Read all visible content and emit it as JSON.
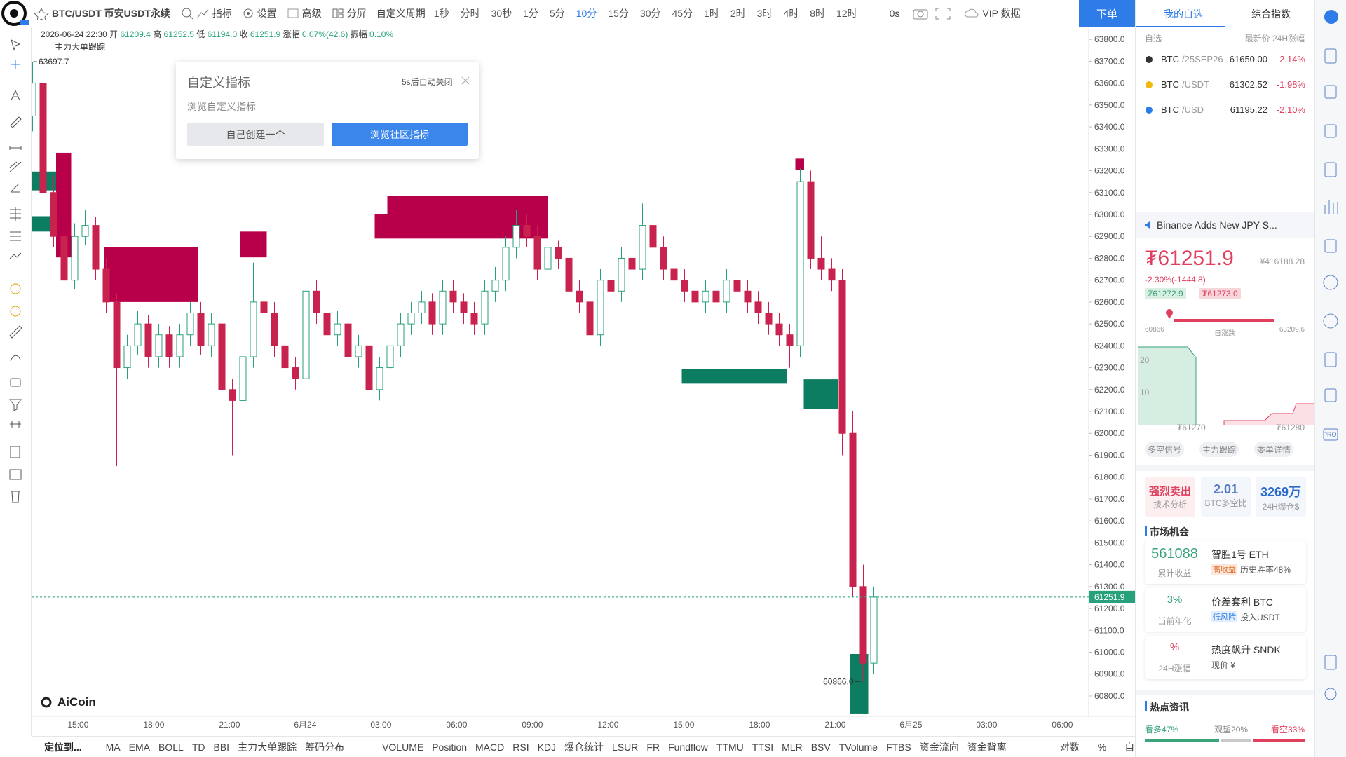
{
  "toolbar": {
    "symbol": "BTC/USDT 币安USDT永续",
    "indicator": "指标",
    "settings": "设置",
    "advanced": "高级",
    "split": "分屏",
    "custom_period": "自定义周期",
    "intervals": [
      "1秒",
      "分时",
      "30秒",
      "1分",
      "5分",
      "10分",
      "15分",
      "30分",
      "45分",
      "1时",
      "2时",
      "3时",
      "4时",
      "8时",
      "12时"
    ],
    "active_interval": "10分",
    "countdown": "0s",
    "vip": "VIP 数据",
    "order": "下单"
  },
  "legend": {
    "datetime": "2026-06-24 22:30",
    "open_label": "开",
    "open": "61209.4",
    "high_label": "高",
    "high": "61252.5",
    "low_label": "低",
    "low": "61194.0",
    "close_label": "收",
    "close": "61251.9",
    "change_label": "涨幅",
    "change": "0.07%(42.6)",
    "amplitude_label": "振幅",
    "amplitude": "0.10%",
    "indicator": "主力大单跟踪"
  },
  "popup": {
    "title": "自定义指标",
    "countdown": "5s后自动关闭",
    "subtitle": "浏览自定义指标",
    "create": "自己创建一个",
    "browse": "浏览社区指标"
  },
  "chart_data": {
    "type": "candlestick",
    "up_color": "#26a17b",
    "down_color": "#c8234e",
    "ylim": [
      60707,
      63855
    ],
    "yticks": [
      {
        "value": 63800,
        "label": "63800.0"
      },
      {
        "value": 63700,
        "label": "63700.0"
      },
      {
        "value": 63600,
        "label": "63600.0"
      },
      {
        "value": 63500,
        "label": "63500.0"
      },
      {
        "value": 63400,
        "label": "63400.0"
      },
      {
        "value": 63300,
        "label": "63300.0"
      },
      {
        "value": 63200,
        "label": "63200.0"
      },
      {
        "value": 63100,
        "label": "63100.0"
      },
      {
        "value": 63000,
        "label": "63000.0"
      },
      {
        "value": 62900,
        "label": "62900.0"
      },
      {
        "value": 62800,
        "label": "62800.0"
      },
      {
        "value": 62700,
        "label": "62700.0"
      },
      {
        "value": 62600,
        "label": "62600.0"
      },
      {
        "value": 62500,
        "label": "62500.0"
      },
      {
        "value": 62400,
        "label": "62400.0"
      },
      {
        "value": 62300,
        "label": "62300.0"
      },
      {
        "value": 62200,
        "label": "62200.0"
      },
      {
        "value": 62100,
        "label": "62100.0"
      },
      {
        "value": 62000,
        "label": "62000.0"
      },
      {
        "value": 61900,
        "label": "61900.0"
      },
      {
        "value": 61800,
        "label": "61800.0"
      },
      {
        "value": 61700,
        "label": "61700.0"
      },
      {
        "value": 61600,
        "label": "61600.0"
      },
      {
        "value": 61500,
        "label": "61500.0"
      },
      {
        "value": 61400,
        "label": "61400.0"
      },
      {
        "value": 61300,
        "label": "61300.0"
      },
      {
        "value": 61200,
        "label": "61200.0"
      },
      {
        "value": 61100,
        "label": "61100.0"
      },
      {
        "value": 61000,
        "label": "61000.0"
      },
      {
        "value": 60900,
        "label": "60900.0"
      },
      {
        "value": 60800,
        "label": "60800.0"
      }
    ],
    "grid": false,
    "xtick_labels": [
      "15:00",
      "18:00",
      "21:00",
      "6月24",
      "03:00",
      "06:00",
      "09:00",
      "12:00",
      "15:00",
      "18:00",
      "21:00",
      "6月25",
      "03:00",
      "06:00"
    ],
    "ohlc": [
      [
        63450,
        63697.7,
        63380,
        63600
      ],
      [
        63600,
        63650,
        63050,
        63100
      ],
      [
        63100,
        63180,
        62850,
        62900
      ],
      [
        62900,
        62950,
        62650,
        62700
      ],
      [
        62700,
        62960,
        62660,
        62900
      ],
      [
        62900,
        63020,
        62860,
        62950
      ],
      [
        62950,
        62990,
        62700,
        62750
      ],
      [
        62750,
        62800,
        62550,
        62600
      ],
      [
        62600,
        62640,
        61850,
        62300
      ],
      [
        62300,
        62450,
        62250,
        62400
      ],
      [
        62400,
        62560,
        62360,
        62500
      ],
      [
        62500,
        62540,
        62300,
        62350
      ],
      [
        62350,
        62500,
        62300,
        62450
      ],
      [
        62450,
        62490,
        62300,
        62350
      ],
      [
        62350,
        62500,
        62300,
        62450
      ],
      [
        62450,
        62600,
        62400,
        62550
      ],
      [
        62550,
        62600,
        62360,
        62400
      ],
      [
        62400,
        62550,
        62350,
        62500
      ],
      [
        62500,
        62540,
        62100,
        62200
      ],
      [
        62200,
        62250,
        61900,
        62150
      ],
      [
        62150,
        62400,
        62100,
        62350
      ],
      [
        62350,
        62780,
        62300,
        62600
      ],
      [
        62600,
        62650,
        62500,
        62550
      ],
      [
        62550,
        62600,
        62350,
        62400
      ],
      [
        62400,
        62450,
        62250,
        62300
      ],
      [
        62300,
        62350,
        62200,
        62250
      ],
      [
        62250,
        62800,
        62200,
        62650
      ],
      [
        62650,
        62700,
        62500,
        62550
      ],
      [
        62550,
        62600,
        62400,
        62450
      ],
      [
        62450,
        62560,
        62400,
        62500
      ],
      [
        62500,
        62540,
        62300,
        62350
      ],
      [
        62350,
        62450,
        62300,
        62400
      ],
      [
        62400,
        62450,
        62080,
        62200
      ],
      [
        62200,
        62350,
        62150,
        62300
      ],
      [
        62300,
        62450,
        62250,
        62400
      ],
      [
        62400,
        62550,
        62350,
        62500
      ],
      [
        62500,
        62600,
        62450,
        62550
      ],
      [
        62550,
        62650,
        62500,
        62600
      ],
      [
        62600,
        62640,
        62450,
        62500
      ],
      [
        62500,
        62700,
        62450,
        62650
      ],
      [
        62650,
        62700,
        62550,
        62600
      ],
      [
        62600,
        62640,
        62500,
        62550
      ],
      [
        62550,
        62600,
        62450,
        62500
      ],
      [
        62500,
        62700,
        62450,
        62650
      ],
      [
        62650,
        62760,
        62600,
        62700
      ],
      [
        62700,
        62900,
        62650,
        62850
      ],
      [
        62850,
        63020,
        62800,
        62950
      ],
      [
        62950,
        63000,
        62850,
        62900
      ],
      [
        62900,
        62950,
        62700,
        62750
      ],
      [
        62750,
        62900,
        62700,
        62850
      ],
      [
        62850,
        62880,
        62750,
        62800
      ],
      [
        62800,
        62850,
        62600,
        62650
      ],
      [
        62650,
        62700,
        62550,
        62600
      ],
      [
        62600,
        62650,
        62400,
        62450
      ],
      [
        62450,
        62750,
        62400,
        62700
      ],
      [
        62700,
        62750,
        62600,
        62650
      ],
      [
        62650,
        62850,
        62600,
        62800
      ],
      [
        62800,
        62850,
        62700,
        62750
      ],
      [
        62750,
        63050,
        62700,
        62950
      ],
      [
        62950,
        63000,
        62800,
        62850
      ],
      [
        62850,
        62900,
        62700,
        62750
      ],
      [
        62750,
        62800,
        62650,
        62700
      ],
      [
        62700,
        62750,
        62600,
        62650
      ],
      [
        62650,
        62700,
        62550,
        62600
      ],
      [
        62600,
        62700,
        62550,
        62650
      ],
      [
        62650,
        62700,
        62550,
        62600
      ],
      [
        62600,
        62750,
        62550,
        62700
      ],
      [
        62700,
        62750,
        62600,
        62650
      ],
      [
        62650,
        62700,
        62550,
        62600
      ],
      [
        62600,
        62650,
        62500,
        62550
      ],
      [
        62550,
        62600,
        62450,
        62500
      ],
      [
        62500,
        62550,
        62400,
        62450
      ],
      [
        62450,
        62500,
        62300,
        62400
      ],
      [
        62400,
        63209.6,
        62350,
        63150
      ],
      [
        63150,
        63200,
        62750,
        62800
      ],
      [
        62800,
        62900,
        62700,
        62750
      ],
      [
        62750,
        62800,
        62650,
        62700
      ],
      [
        62700,
        62750,
        61900,
        62000
      ],
      [
        62000,
        62100,
        61250,
        61300
      ],
      [
        61300,
        61400,
        60866,
        60950
      ],
      [
        60950,
        61300,
        60900,
        61251.9
      ]
    ],
    "block_colors": {
      "buy": "#0d7d61",
      "sell": "#b8004a"
    },
    "blocks": [
      {
        "from": 0,
        "to": 2,
        "low": 63110,
        "high": 63196,
        "side": "buy"
      },
      {
        "from": 0,
        "to": 2.4,
        "low": 62922,
        "high": 62992,
        "side": "buy"
      },
      {
        "from": 2.5,
        "to": 3.4,
        "low": 62804,
        "high": 63282,
        "side": "sell"
      },
      {
        "from": 7.1,
        "to": 15.5,
        "low": 62600,
        "high": 62851,
        "side": "sell"
      },
      {
        "from": 20,
        "to": 22,
        "low": 62804,
        "high": 62922,
        "side": "sell"
      },
      {
        "from": 32.8,
        "to": 48.7,
        "low": 62890,
        "high": 63000,
        "side": "sell"
      },
      {
        "from": 34,
        "to": 48.7,
        "low": 63000,
        "high": 63086,
        "side": "sell"
      },
      {
        "from": 62,
        "to": 71.5,
        "low": 62227,
        "high": 62294,
        "side": "buy"
      },
      {
        "from": 72.8,
        "to": 73.1,
        "low": 63204,
        "high": 63255,
        "side": "sell"
      },
      {
        "from": 73.6,
        "to": 76.3,
        "low": 62110,
        "high": 62247,
        "side": "buy"
      },
      {
        "from": 78,
        "to": 79.2,
        "low": 60720,
        "high": 60992,
        "side": "buy"
      }
    ],
    "high_marker": 63697.7,
    "low_marker": {
      "value": 60866,
      "label": "60866.0"
    },
    "watermark": "AiCoin"
  },
  "bottom_bar": {
    "locate": "定位到...",
    "main_indicators": [
      "MA",
      "EMA",
      "BOLL",
      "TD",
      "BBI",
      "主力大单跟踪",
      "筹码分布"
    ],
    "active": "主力大单跟踪",
    "sub_indicators": [
      "VOLUME",
      "Position",
      "MACD",
      "RSI",
      "KDJ",
      "爆仓统计",
      "LSUR",
      "FR",
      "Fundflow",
      "TTMU",
      "TTSI",
      "MLR",
      "BSV",
      "TVolume",
      "FTBS",
      "资金流向",
      "资金背离"
    ],
    "log": "对数",
    "percent": "%",
    "auto": "自动"
  },
  "right_panel": {
    "tabs": [
      "我的自选",
      "综合指数"
    ],
    "list_header": {
      "group": "自选",
      "columns": "最新价 24H涨幅"
    },
    "watchlist": [
      {
        "base": "BTC",
        "quote": "/25SEP26",
        "price": "61650.00",
        "change": "-2.14%"
      },
      {
        "base": "BTC",
        "quote": "/USDT",
        "price": "61302.52",
        "change": "-1.98%"
      },
      {
        "base": "BTC",
        "quote": "/USD",
        "price": "61195.22",
        "change": "-2.10%"
      }
    ],
    "news": "Binance Adds New JPY S...",
    "price": "₮61251.9",
    "price_cny": "¥416188.28",
    "change": "-2.30%(-1444.8)",
    "bid": "₮61272.9",
    "ask": "₮61273.0",
    "range": {
      "low": "60866",
      "label": "日涨跌",
      "high": "63209.6"
    },
    "depth": {
      "levels": [
        "20",
        "10"
      ],
      "left": "₮61270",
      "right": "₮61280"
    },
    "buttons": [
      "多空信号",
      "主力跟踪",
      "委单详情"
    ],
    "cards": [
      {
        "value": "强烈卖出",
        "label": "技术分析"
      },
      {
        "value": "2.01",
        "label": "BTC多空比"
      },
      {
        "value": "3269万",
        "label": "24H爆仓$"
      }
    ],
    "market_title": "市场机会",
    "opportunities": [
      {
        "value": "561088",
        "value_label": "累计收益",
        "name": "智胜1号 ETH",
        "tag": "高收益",
        "detail": "历史胜率48%"
      },
      {
        "value": "3%",
        "value_label": "当前年化",
        "name": "价差套利 BTC",
        "tag": "低风险",
        "detail": "投入USDT"
      },
      {
        "value": "%",
        "value_label": "24H涨幅",
        "name": "热度飙升 SNDK",
        "detail": "现价 ¥"
      }
    ],
    "hot_title": "热点资讯",
    "sentiment": [
      {
        "label": "看多",
        "value": 47,
        "value_label": "47%",
        "color": "#3aa37a"
      },
      {
        "label": "观望",
        "value": 20,
        "value_label": "20%",
        "color": "#c9c9c9"
      },
      {
        "label": "看空",
        "value": 33,
        "value_label": "33%",
        "color": "#e0405e"
      }
    ],
    "pro_badge": "PRO"
  }
}
